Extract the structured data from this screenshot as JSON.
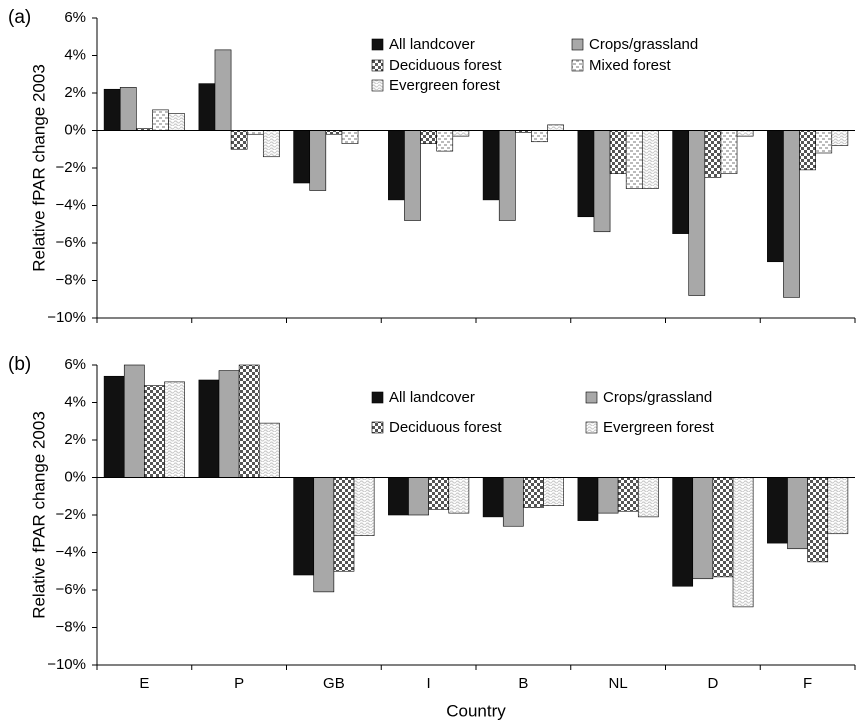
{
  "chart_data": [
    {
      "type": "bar",
      "panel_label": "(a)",
      "y_label": "Relative fPAR change 2003",
      "categories": [
        null,
        null,
        null,
        null,
        null,
        null,
        null,
        null
      ],
      "series": [
        {
          "name": "All landcover",
          "color": "#111111",
          "values": [
            2.2,
            2.5,
            -2.8,
            -3.7,
            -3.7,
            -4.6,
            -5.5,
            -7.0
          ]
        },
        {
          "name": "Crops/grassland",
          "color": "#a8a8a8",
          "values": [
            2.3,
            4.3,
            -3.2,
            -4.8,
            -4.8,
            -5.4,
            -8.8,
            -8.9
          ]
        },
        {
          "name": "Deciduous forest",
          "color": "#555555",
          "values": [
            0.1,
            -1.0,
            -0.2,
            -0.7,
            -0.1,
            -2.3,
            -2.5,
            -2.1
          ]
        },
        {
          "name": "Mixed forest",
          "color": "#bbbbbb",
          "values": [
            1.1,
            -0.2,
            -0.7,
            -1.1,
            -0.6,
            -3.1,
            -2.3,
            -1.2
          ]
        },
        {
          "name": "Evergreen forest",
          "color": "#cccccc",
          "values": [
            0.9,
            -1.4,
            null,
            -0.3,
            0.3,
            -3.1,
            -0.3,
            -0.8
          ]
        }
      ],
      "ylim": [
        -10,
        6
      ],
      "yticks": [
        {
          "value": -10,
          "label": "−10%"
        },
        {
          "value": -8,
          "label": "−8%"
        },
        {
          "value": -6,
          "label": "−6%"
        },
        {
          "value": -4,
          "label": "−4%"
        },
        {
          "value": -2,
          "label": "−2%"
        },
        {
          "value": 0,
          "label": "0%"
        },
        {
          "value": 2,
          "label": "2%"
        },
        {
          "value": 4,
          "label": "4%"
        },
        {
          "value": 6,
          "label": "6%"
        }
      ]
    },
    {
      "type": "bar",
      "panel_label": "(b)",
      "y_label": "Relative fPAR change 2003",
      "x_label": "Country",
      "categories": [
        "E",
        "P",
        "GB",
        "I",
        "B",
        "NL",
        "D",
        "F"
      ],
      "series": [
        {
          "name": "All landcover",
          "color": "#111111",
          "values": [
            5.4,
            5.2,
            -5.2,
            -2.0,
            -2.1,
            -2.3,
            -5.8,
            -3.5
          ]
        },
        {
          "name": "Crops/grassland",
          "color": "#a8a8a8",
          "values": [
            6.0,
            5.7,
            -6.1,
            -2.0,
            -2.6,
            -1.9,
            -5.4,
            -3.8
          ]
        },
        {
          "name": "Deciduous forest",
          "color": "#555555",
          "values": [
            4.9,
            6.0,
            -5.0,
            -1.7,
            -1.6,
            -1.8,
            -5.3,
            -4.5
          ]
        },
        {
          "name": "Evergreen forest",
          "color": "#cccccc",
          "values": [
            5.1,
            2.9,
            -3.1,
            -1.9,
            -1.5,
            -2.1,
            -6.9,
            -3.0
          ]
        }
      ],
      "ylim": [
        -10,
        6
      ],
      "yticks": [
        {
          "value": -10,
          "label": "−10%"
        },
        {
          "value": -8,
          "label": "−8%"
        },
        {
          "value": -6,
          "label": "−6%"
        },
        {
          "value": -4,
          "label": "−4%"
        },
        {
          "value": -2,
          "label": "−2%"
        },
        {
          "value": 0,
          "label": "0%"
        },
        {
          "value": 2,
          "label": "2%"
        },
        {
          "value": 4,
          "label": "4%"
        },
        {
          "value": 6,
          "label": "6%"
        }
      ]
    }
  ]
}
